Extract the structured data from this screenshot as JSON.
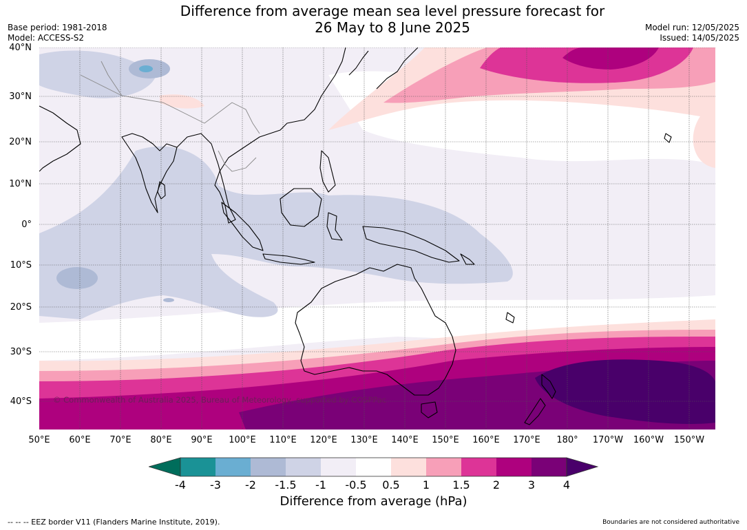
{
  "title": {
    "line1": "Difference from average mean sea level pressure forecast for",
    "line2": "26 May to 8 June 2025"
  },
  "meta_left": {
    "base_period": "Base period: 1981-2018",
    "model": "Model: ACCESS-S2"
  },
  "meta_right": {
    "model_run": "Model run: 12/05/2025",
    "issued": "Issued: 14/05/2025"
  },
  "map": {
    "lat_labels": [
      "40°N",
      "30°N",
      "20°N",
      "10°N",
      "0°",
      "10°S",
      "20°S",
      "30°S",
      "40°S"
    ],
    "lon_labels": [
      "50°E",
      "60°E",
      "70°E",
      "80°E",
      "90°E",
      "100°E",
      "110°E",
      "120°E",
      "130°E",
      "140°E",
      "150°E",
      "160°E",
      "170°E",
      "180°",
      "170°W",
      "160°W",
      "150°W"
    ],
    "copyright": "© Commonwealth of Australia 2025, Bureau of Meteorology, supported by COSPPac"
  },
  "colorbar": {
    "label": "Difference from average (hPa)",
    "ticks": [
      "-4",
      "-3",
      "-2",
      "-1.5",
      "-1",
      "-0.5",
      "0.5",
      "1",
      "1.5",
      "2",
      "3",
      "4"
    ],
    "colors": [
      "#006d5b",
      "#1a9296",
      "#6aaed2",
      "#aebad5",
      "#cfd3e6",
      "#f2eef6",
      "#ffffff",
      "#fde0dd",
      "#f79fb8",
      "#dd3497",
      "#ae017e",
      "#7a0177",
      "#49006a"
    ]
  },
  "footer": {
    "eez": "--  --  -- EEZ border V11 (Flanders Marine Institute, 2019).",
    "boundaries": "Boundaries are not considered authoritative"
  }
}
